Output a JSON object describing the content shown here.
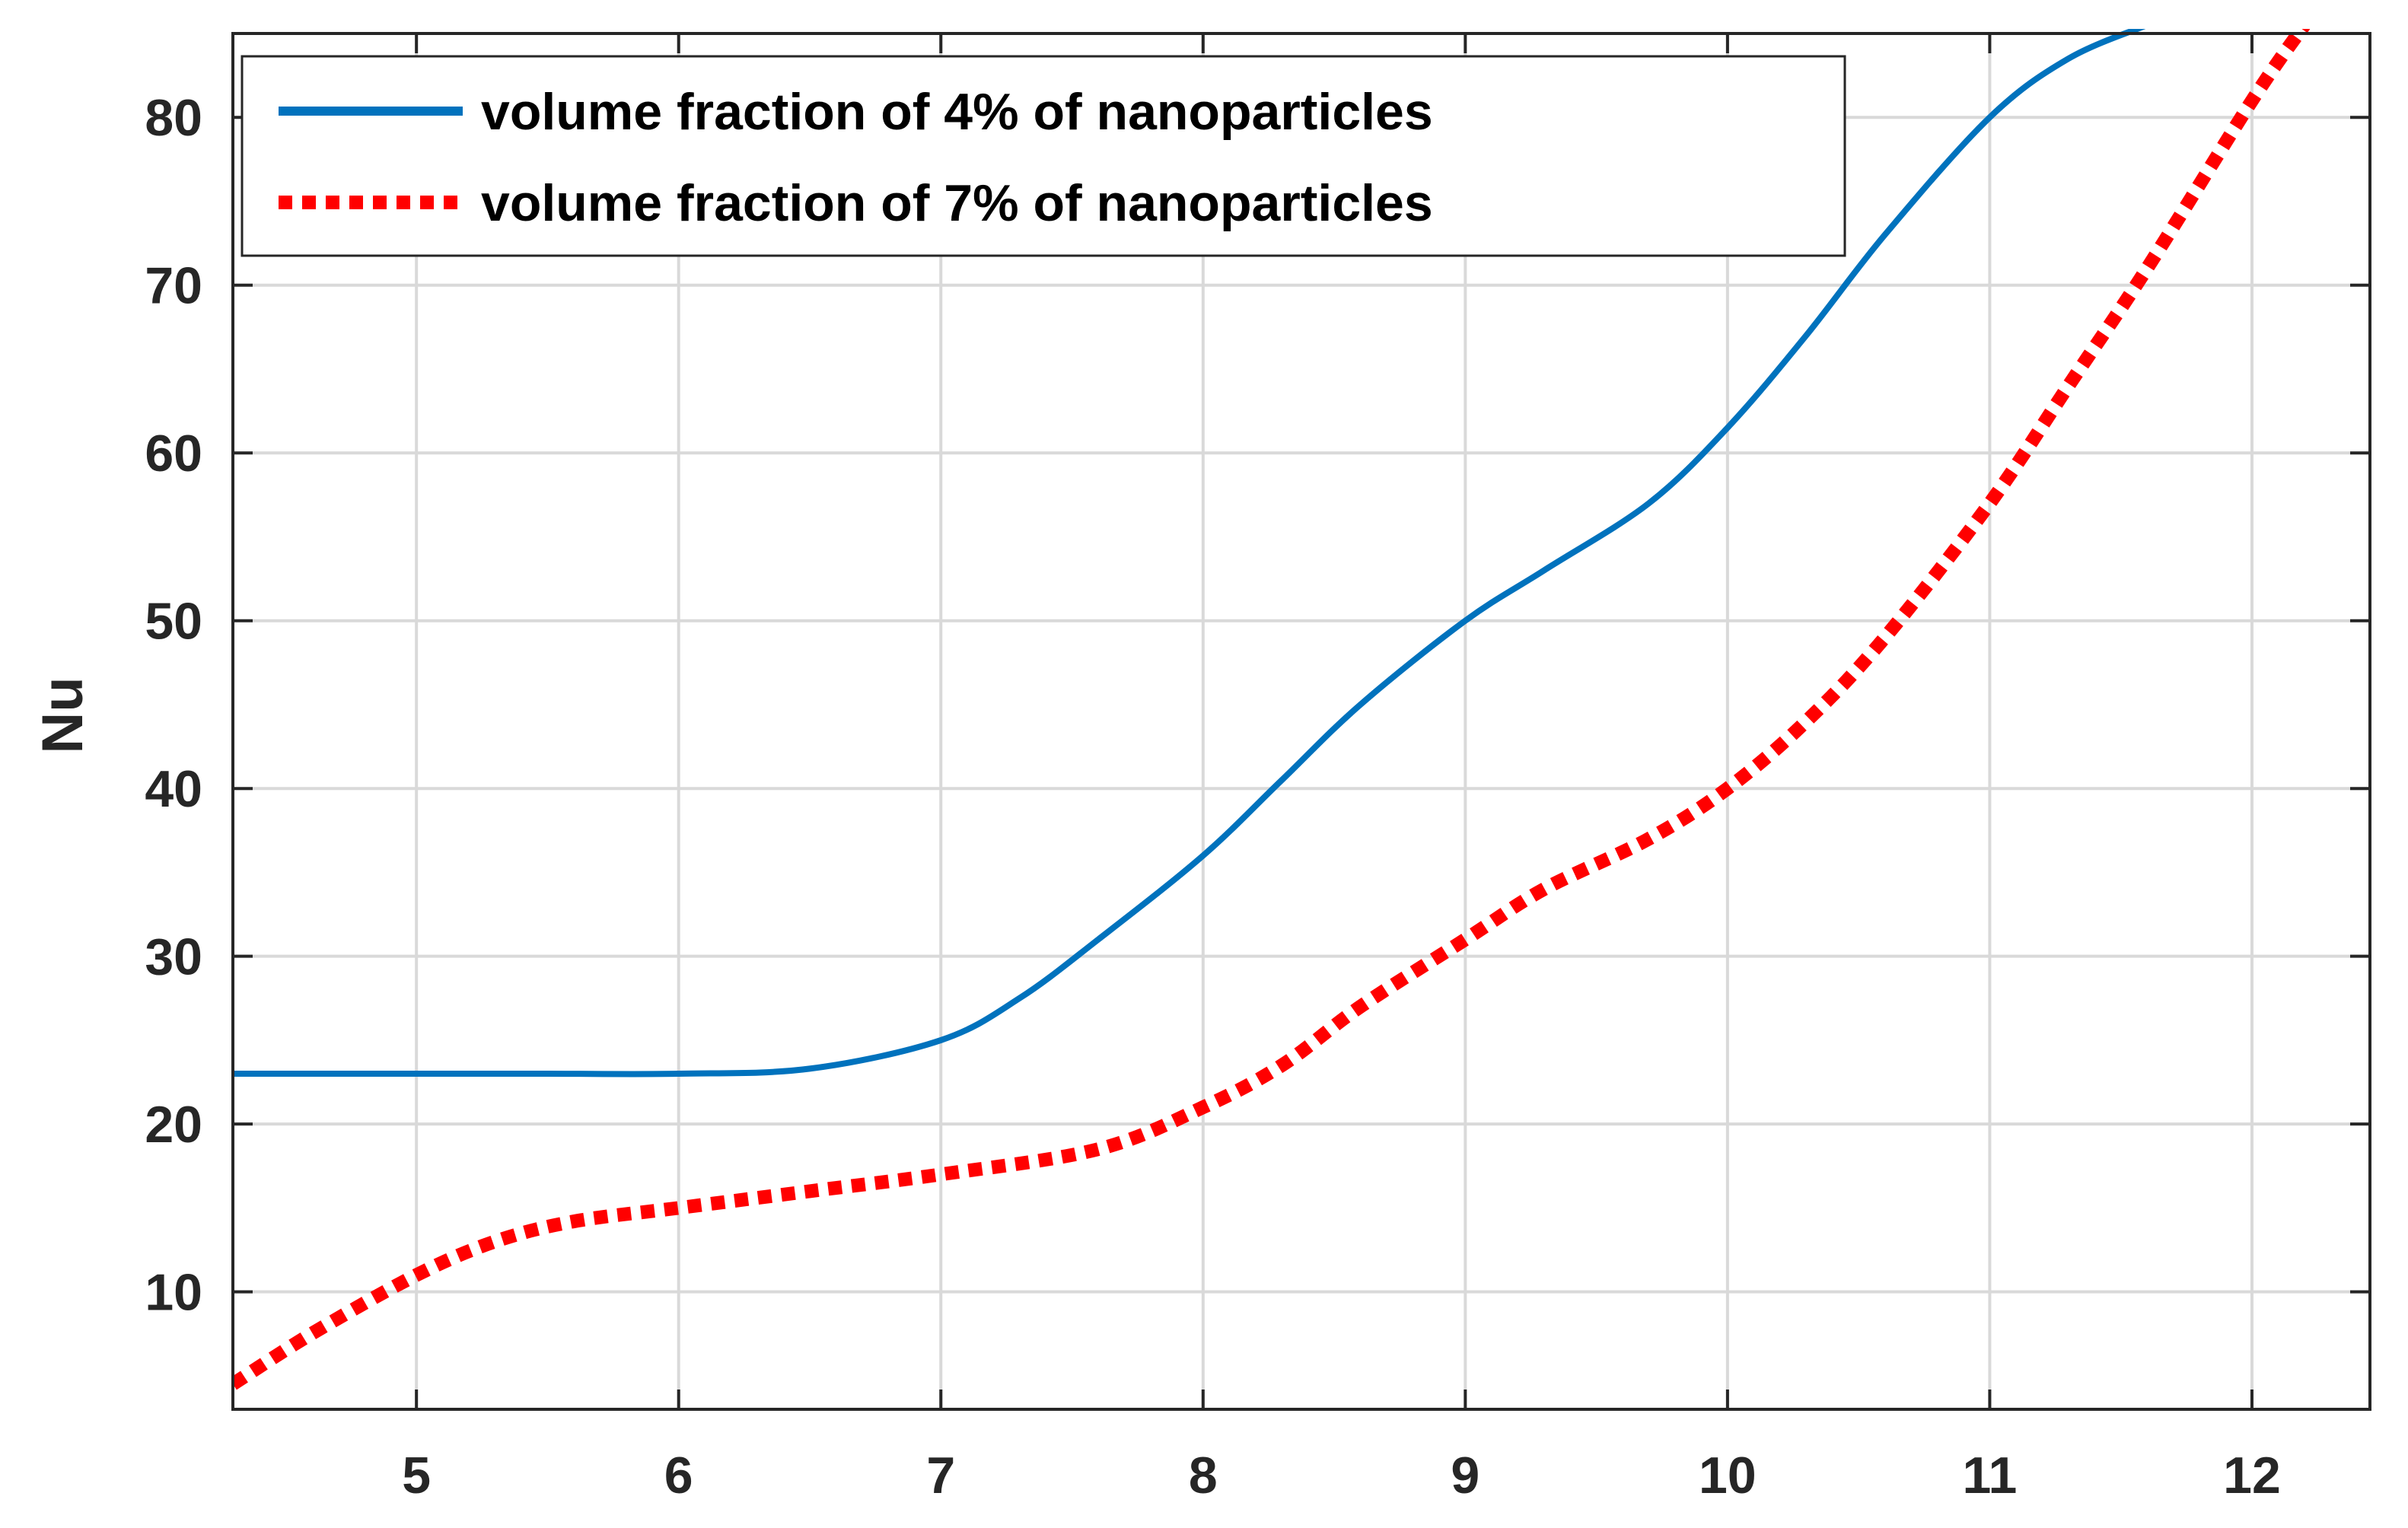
{
  "chart_data": {
    "type": "line",
    "title": "",
    "xlabel": "",
    "ylabel": "Nu",
    "xlim": [
      4.3,
      12.45
    ],
    "ylim": [
      3,
      85
    ],
    "xticks": [
      5,
      6,
      7,
      8,
      9,
      10,
      11,
      12
    ],
    "yticks": [
      10,
      20,
      30,
      40,
      50,
      60,
      70,
      80
    ],
    "grid": true,
    "legend_position": "top-left",
    "series": [
      {
        "name": "volume fraction of 4% of nanoparticles",
        "color": "#0072BD",
        "line_style": "solid",
        "x": [
          4.3,
          5,
          5.5,
          6,
          6.5,
          7,
          7.3,
          7.6,
          8,
          8.3,
          8.6,
          9,
          9.3,
          9.7,
          10,
          10.3,
          10.6,
          11,
          11.3,
          11.6
        ],
        "y": [
          23,
          23,
          23,
          23,
          23.3,
          25,
          27.5,
          31,
          36,
          40.5,
          45,
          50,
          53,
          57,
          61.5,
          67,
          73,
          80,
          83.5,
          85.5
        ]
      },
      {
        "name": "volume fraction of 7% of nanoparticles",
        "color": "#FF0000",
        "line_style": "dotted",
        "x": [
          4.3,
          4.6,
          5,
          5.3,
          5.6,
          6,
          6.5,
          7,
          7.6,
          8,
          8.3,
          8.6,
          9,
          9.3,
          9.7,
          10,
          10.3,
          10.6,
          11,
          11.3,
          11.6,
          12,
          12.2
        ],
        "y": [
          4.5,
          7.5,
          11,
          13,
          14.2,
          15,
          16,
          17,
          18.5,
          21,
          23.5,
          27,
          31,
          34,
          37,
          40,
          44,
          49,
          57,
          64,
          71,
          81,
          85.5
        ]
      }
    ]
  }
}
